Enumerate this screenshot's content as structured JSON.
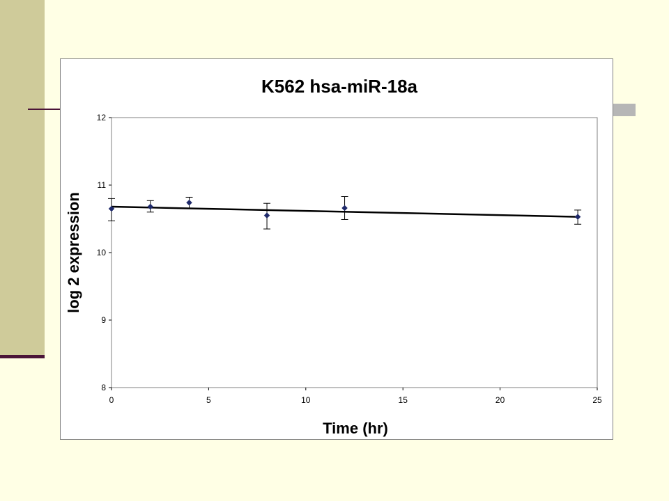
{
  "colors": {
    "background": "#FFFFE5",
    "side_band": "#CFCB9A",
    "accent_rule": "#4B1438",
    "marker": "#1F2A6B",
    "trendline": "#000000"
  },
  "chart_data": {
    "type": "scatter",
    "title": "K562 hsa-miR-18a",
    "xlabel": "Time (hr)",
    "ylabel": "log 2 expression",
    "xlim": [
      0,
      25
    ],
    "ylim": [
      8,
      12
    ],
    "xticks": [
      0,
      5,
      10,
      15,
      20,
      25
    ],
    "yticks": [
      8,
      9,
      10,
      11,
      12
    ],
    "grid": false,
    "legend": "none",
    "marker": "diamond",
    "series": [
      {
        "x": [
          0,
          2,
          4,
          8,
          12,
          24
        ],
        "y": [
          10.65,
          10.68,
          10.74,
          10.55,
          10.66,
          10.53
        ],
        "error_low": [
          10.47,
          10.6,
          10.66,
          10.35,
          10.49,
          10.42
        ],
        "error_high": [
          10.8,
          10.77,
          10.82,
          10.73,
          10.83,
          10.63
        ]
      }
    ],
    "trendline": {
      "type": "linear",
      "x": [
        0,
        24
      ],
      "y": [
        10.68,
        10.53
      ]
    }
  }
}
